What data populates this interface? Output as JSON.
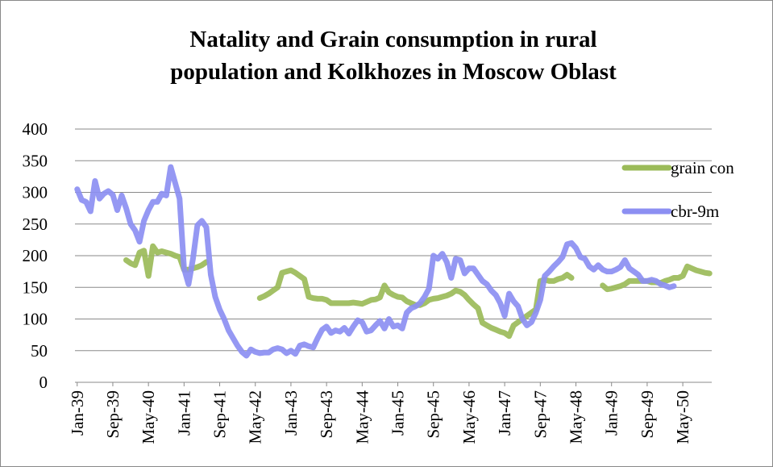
{
  "chart_data": {
    "type": "line",
    "title": [
      "Natality and Grain consumption in rural",
      "population and Kolkhozes in Moscow Oblast"
    ],
    "categories": [
      "Jan-39",
      null,
      null,
      null,
      null,
      null,
      null,
      null,
      "Sep-39",
      null,
      null,
      null,
      null,
      null,
      null,
      null,
      "May-40",
      null,
      null,
      null,
      null,
      null,
      null,
      null,
      "Jan-41",
      null,
      null,
      null,
      null,
      null,
      null,
      null,
      "Sep-41",
      null,
      null,
      null,
      null,
      null,
      null,
      null,
      "May-42",
      null,
      null,
      null,
      null,
      null,
      null,
      null,
      "Jan-43",
      null,
      null,
      null,
      null,
      null,
      null,
      null,
      "Sep-43",
      null,
      null,
      null,
      null,
      null,
      null,
      null,
      "May-44",
      null,
      null,
      null,
      null,
      null,
      null,
      null,
      "Jan-45",
      null,
      null,
      null,
      null,
      null,
      null,
      null,
      "Sep-45",
      null,
      null,
      null,
      null,
      null,
      null,
      null,
      "May-46",
      null,
      null,
      null,
      null,
      null,
      null,
      null,
      "Jan-47",
      null,
      null,
      null,
      null,
      null,
      null,
      null,
      "Sep-47",
      null,
      null,
      null,
      null,
      null,
      null,
      null,
      "May-48",
      null,
      null,
      null,
      null,
      null,
      null,
      null,
      "Jan-49",
      null,
      null,
      null,
      null,
      null,
      null,
      null,
      "Sep-49",
      null,
      null,
      null,
      null,
      null,
      null,
      null,
      "May-50",
      null,
      null,
      null,
      null,
      null,
      null
    ],
    "series": [
      {
        "name": "grain con",
        "color": "#9bbb59",
        "values": [
          null,
          null,
          null,
          null,
          null,
          null,
          null,
          null,
          null,
          null,
          null,
          193,
          188,
          185,
          205,
          208,
          168,
          215,
          205,
          207,
          205,
          203,
          200,
          198,
          178,
          178,
          180,
          182,
          185,
          190,
          null,
          null,
          null,
          null,
          null,
          null,
          null,
          null,
          null,
          null,
          null,
          133,
          136,
          140,
          145,
          150,
          173,
          175,
          177,
          173,
          168,
          163,
          135,
          133,
          132,
          132,
          130,
          125,
          125,
          125,
          125,
          125,
          126,
          125,
          124,
          127,
          130,
          131,
          134,
          153,
          142,
          138,
          135,
          134,
          128,
          125,
          122,
          122,
          125,
          130,
          132,
          133,
          135,
          137,
          140,
          145,
          143,
          138,
          130,
          123,
          117,
          94,
          90,
          86,
          83,
          80,
          78,
          73,
          90,
          95,
          100,
          105,
          110,
          115,
          160,
          162,
          160,
          160,
          163,
          165,
          170,
          165,
          null,
          null,
          null,
          null,
          null,
          null,
          153,
          147,
          148,
          150,
          152,
          155,
          160,
          160,
          160,
          160,
          160,
          158,
          158,
          157,
          160,
          162,
          165,
          165,
          168,
          183,
          180,
          177,
          175,
          173,
          172
        ]
      },
      {
        "name": "cbr-9m",
        "color": "#8c8ff2",
        "values": [
          305,
          288,
          285,
          270,
          318,
          290,
          298,
          302,
          296,
          272,
          295,
          275,
          250,
          240,
          222,
          255,
          272,
          285,
          285,
          298,
          295,
          340,
          315,
          290,
          180,
          155,
          195,
          248,
          255,
          245,
          170,
          135,
          115,
          100,
          82,
          70,
          58,
          48,
          42,
          52,
          48,
          46,
          47,
          47,
          52,
          54,
          52,
          46,
          50,
          45,
          58,
          60,
          57,
          55,
          70,
          83,
          88,
          78,
          82,
          80,
          86,
          77,
          88,
          98,
          95,
          80,
          82,
          90,
          97,
          85,
          100,
          88,
          90,
          85,
          110,
          117,
          120,
          125,
          135,
          148,
          200,
          195,
          203,
          190,
          165,
          195,
          193,
          172,
          180,
          180,
          170,
          160,
          155,
          145,
          138,
          125,
          105,
          140,
          128,
          120,
          100,
          90,
          95,
          110,
          130,
          168,
          175,
          183,
          190,
          198,
          218,
          220,
          212,
          198,
          195,
          183,
          178,
          185,
          178,
          175,
          175,
          178,
          182,
          193,
          180,
          175,
          170,
          160,
          160,
          162,
          160,
          155,
          153,
          150,
          152,
          null,
          null,
          null,
          null,
          null,
          null,
          null,
          null
        ]
      }
    ],
    "ylim": [
      0,
      400
    ],
    "yticks": [
      0,
      50,
      100,
      150,
      200,
      250,
      300,
      350,
      400
    ],
    "grid": true,
    "legend": "right"
  }
}
